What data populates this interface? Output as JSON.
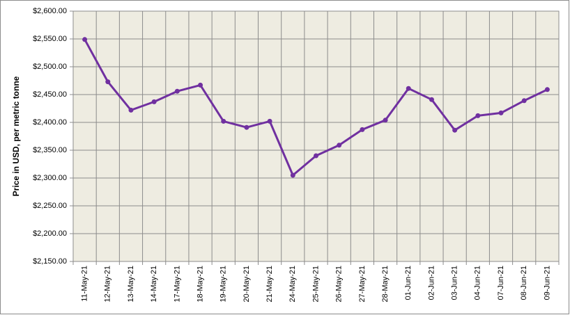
{
  "chart_data": {
    "type": "line",
    "y_label": "Price in USD, per metric tonne",
    "categories": [
      "11-May-21",
      "12-May-21",
      "13-May-21",
      "14-May-21",
      "17-May-21",
      "18-May-21",
      "19-May-21",
      "20-May-21",
      "21-May-21",
      "24-May-21",
      "25-May-21",
      "26-May-21",
      "27-May-21",
      "28-May-21",
      "01-Jun-21",
      "02-Jun-21",
      "03-Jun-21",
      "04-Jun-21",
      "07-Jun-21",
      "08-Jun-21",
      "09-Jun-21"
    ],
    "values": [
      2549,
      2473,
      2422,
      2437,
      2456,
      2467,
      2402,
      2391,
      2402,
      2305,
      2340,
      2359,
      2387,
      2404,
      2461,
      2441,
      2386,
      2412,
      2417,
      2439,
      2459
    ],
    "color": "#7030a0",
    "ylim": [
      2150,
      2600
    ],
    "yticks": [
      {
        "value": 2150,
        "label": "$2,150.00"
      },
      {
        "value": 2200,
        "label": "$2,200.00"
      },
      {
        "value": 2250,
        "label": "$2,250.00"
      },
      {
        "value": 2300,
        "label": "$2,300.00"
      },
      {
        "value": 2350,
        "label": "$2,350.00"
      },
      {
        "value": 2400,
        "label": "$2,400.00"
      },
      {
        "value": 2450,
        "label": "$2,450.00"
      },
      {
        "value": 2500,
        "label": "$2,500.00"
      },
      {
        "value": 2550,
        "label": "$2,550.00"
      },
      {
        "value": 2600,
        "label": "$2,600.00"
      }
    ],
    "grid": true
  }
}
